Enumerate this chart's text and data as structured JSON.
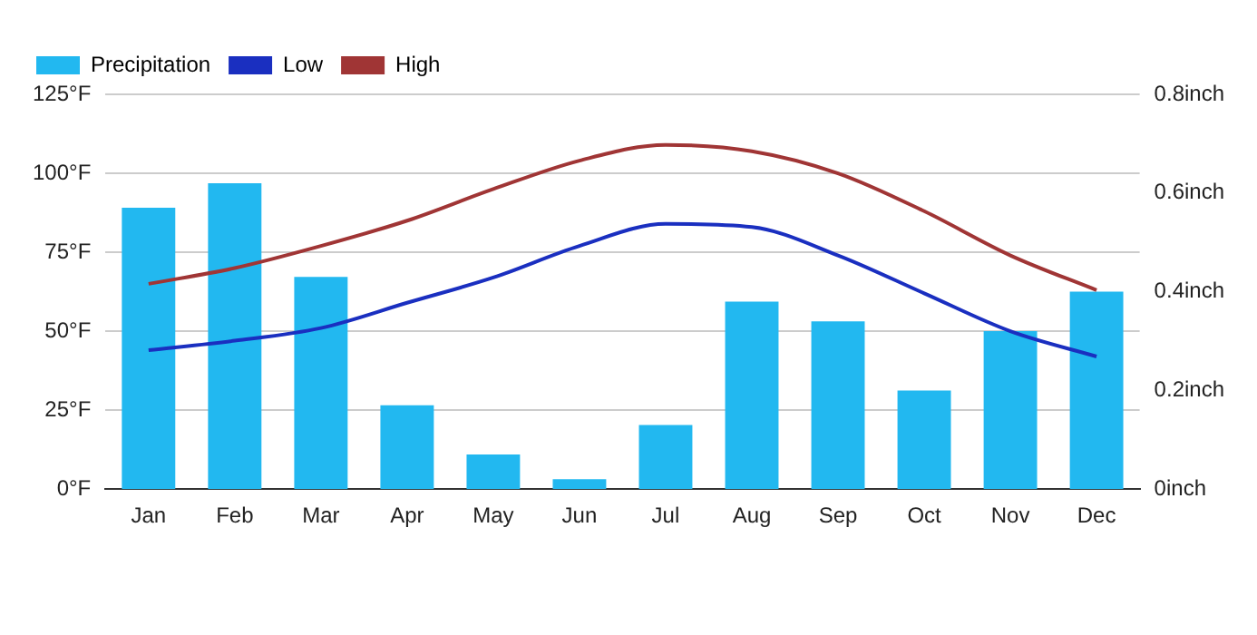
{
  "chart_data": {
    "type": "bar",
    "categories": [
      "Jan",
      "Feb",
      "Mar",
      "Apr",
      "May",
      "Jun",
      "Jul",
      "Aug",
      "Sep",
      "Oct",
      "Nov",
      "Dec"
    ],
    "series": [
      {
        "name": "Precipitation",
        "axis": "y2",
        "color": "#22b8f0",
        "values": [
          0.57,
          0.62,
          0.43,
          0.17,
          0.07,
          0.02,
          0.13,
          0.38,
          0.34,
          0.2,
          0.32,
          0.4
        ]
      },
      {
        "name": "Low",
        "type": "line",
        "color": "#1a2fc0",
        "values": [
          44,
          47,
          51,
          59,
          67,
          77,
          84,
          83,
          74,
          62,
          50,
          42
        ]
      },
      {
        "name": "High",
        "type": "line",
        "color": "#a03535",
        "values": [
          65,
          70,
          77,
          85,
          95,
          104,
          109,
          107,
          100,
          88,
          74,
          63
        ]
      }
    ],
    "ylim": [
      0,
      125
    ],
    "yticks": [
      {
        "value": 0,
        "label": "0°F"
      },
      {
        "value": 25,
        "label": "25°F"
      },
      {
        "value": 50,
        "label": "50°F"
      },
      {
        "value": 75,
        "label": "75°F"
      },
      {
        "value": 100,
        "label": "100°F"
      },
      {
        "value": 125,
        "label": "125°F"
      }
    ],
    "y2lim": [
      0,
      0.8
    ],
    "y2ticks": [
      {
        "value": 0,
        "label": "0inch"
      },
      {
        "value": 0.2,
        "label": "0.2inch"
      },
      {
        "value": 0.4,
        "label": "0.4inch"
      },
      {
        "value": 0.6,
        "label": "0.6inch"
      },
      {
        "value": 0.8,
        "label": "0.8inch"
      }
    ],
    "grid": "y",
    "legend": "top left",
    "marker": "none",
    "line_style": "solid"
  }
}
